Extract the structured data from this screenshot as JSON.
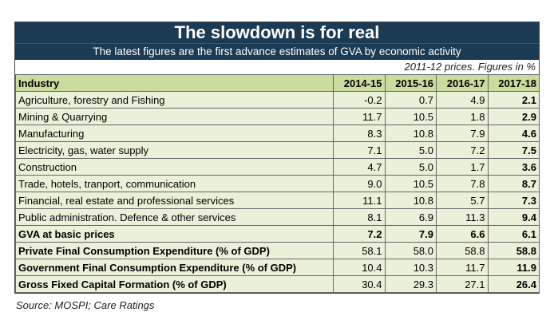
{
  "title": "The slowdown is for real",
  "subtitle": "The latest figures are the first advance estimates of GVA by economic activity",
  "units_note": "2011-12 prices. Figures in %",
  "table": {
    "headers": [
      "Industry",
      "2014-15",
      "2015-16",
      "2016-17",
      "2017-18"
    ],
    "rows": [
      {
        "label": "Agriculture, forestry and Fishing",
        "values": [
          "-0.2",
          "0.7",
          "4.9",
          "2.1"
        ],
        "bold": false
      },
      {
        "label": "Mining & Quarrying",
        "values": [
          "11.7",
          "10.5",
          "1.8",
          "2.9"
        ],
        "bold": false
      },
      {
        "label": "Manufacturing",
        "values": [
          "8.3",
          "10.8",
          "7.9",
          "4.6"
        ],
        "bold": false
      },
      {
        "label": "Electricity, gas, water supply",
        "values": [
          "7.1",
          "5.0",
          "7.2",
          "7.5"
        ],
        "bold": false
      },
      {
        "label": "Construction",
        "values": [
          "4.7",
          "5.0",
          "1.7",
          "3.6"
        ],
        "bold": false
      },
      {
        "label": "Trade, hotels, tranport, communication",
        "values": [
          "9.0",
          "10.5",
          "7.8",
          "8.7"
        ],
        "bold": false
      },
      {
        "label": "Financial, real estate and professional services",
        "values": [
          "11.1",
          "10.8",
          "5.7",
          "7.3"
        ],
        "bold": false
      },
      {
        "label": "Public administration. Defence & other services",
        "values": [
          "8.1",
          "6.9",
          "11.3",
          "9.4"
        ],
        "bold": false
      },
      {
        "label": "GVA at basic prices",
        "values": [
          "7.2",
          "7.9",
          "6.6",
          "6.1"
        ],
        "bold": true
      },
      {
        "label": "Private Final Consumption Expenditure (% of GDP)",
        "values": [
          "58.1",
          "58.0",
          "58.8",
          "58.8"
        ],
        "bold": true,
        "bold_label_only": true
      },
      {
        "label": "Government Final Consumption Expenditure (% of GDP)",
        "values": [
          "10.4",
          "10.3",
          "11.7",
          "11.9"
        ],
        "bold": true,
        "bold_label_only": true
      },
      {
        "label": "Gross Fixed Capital Formation (% of GDP)",
        "values": [
          "30.4",
          "29.3",
          "27.1",
          "26.4"
        ],
        "bold": true,
        "bold_label_only": true
      }
    ]
  },
  "source": "Source: MOSPI; Care Ratings"
}
